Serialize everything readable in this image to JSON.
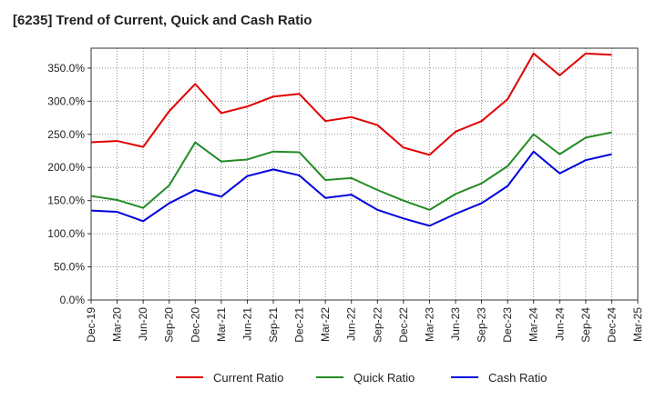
{
  "chart_data": {
    "type": "line",
    "title": "[6235]  Trend of Current, Quick and Cash Ratio",
    "xlabel": "",
    "ylabel": "",
    "categories": [
      "Dec-19",
      "Mar-20",
      "Jun-20",
      "Sep-20",
      "Dec-20",
      "Mar-21",
      "Jun-21",
      "Sep-21",
      "Dec-21",
      "Mar-22",
      "Jun-22",
      "Sep-22",
      "Dec-22",
      "Mar-23",
      "Jun-23",
      "Sep-23",
      "Dec-23",
      "Mar-24",
      "Jun-24",
      "Sep-24",
      "Dec-24",
      "Mar-25"
    ],
    "x": [
      "Dec-19",
      "Mar-20",
      "Jun-20",
      "Sep-20",
      "Dec-20",
      "Mar-21",
      "Jun-21",
      "Sep-21",
      "Dec-21",
      "Mar-22",
      "Jun-22",
      "Sep-22",
      "Dec-22",
      "Mar-23",
      "Jun-23",
      "Sep-23",
      "Dec-23",
      "Mar-24",
      "Jun-24",
      "Sep-24",
      "Dec-24"
    ],
    "ylim": [
      0,
      380
    ],
    "yticks": [
      0,
      50,
      100,
      150,
      200,
      250,
      300,
      350
    ],
    "ytick_labels": [
      "0.0%",
      "50.0%",
      "100.0%",
      "150.0%",
      "200.0%",
      "250.0%",
      "300.0%",
      "350.0%"
    ],
    "grid": true,
    "legend_position": "bottom",
    "series": [
      {
        "name": "Current Ratio",
        "color": "#e00000",
        "values": [
          238,
          240,
          231,
          285,
          326,
          282,
          292,
          307,
          311,
          270,
          276,
          264,
          230,
          219,
          254,
          270,
          303,
          372,
          339,
          372,
          370
        ]
      },
      {
        "name": "Quick Ratio",
        "color": "#228b22",
        "values": [
          157,
          151,
          139,
          173,
          238,
          209,
          212,
          224,
          223,
          181,
          184,
          166,
          150,
          136,
          160,
          176,
          202,
          250,
          220,
          245,
          253
        ]
      },
      {
        "name": "Cash Ratio",
        "color": "#0000dd",
        "values": [
          135,
          133,
          119,
          146,
          166,
          156,
          187,
          197,
          188,
          154,
          159,
          136,
          123,
          112,
          130,
          146,
          172,
          224,
          191,
          211,
          220
        ]
      }
    ]
  }
}
